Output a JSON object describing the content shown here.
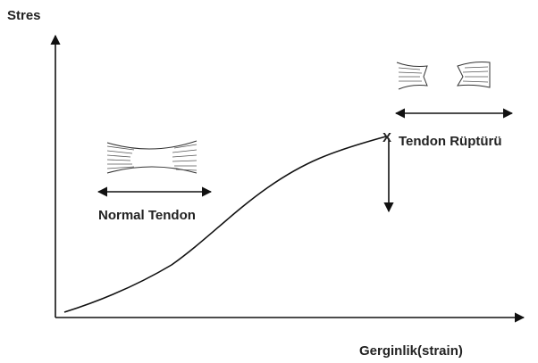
{
  "axes": {
    "y_label": "Stres",
    "x_label": "Gerginlik(strain)"
  },
  "annotations": {
    "normal": "Normal Tendon",
    "rupture": "Tendon Rüptürü",
    "rupture_marker": "X"
  }
}
